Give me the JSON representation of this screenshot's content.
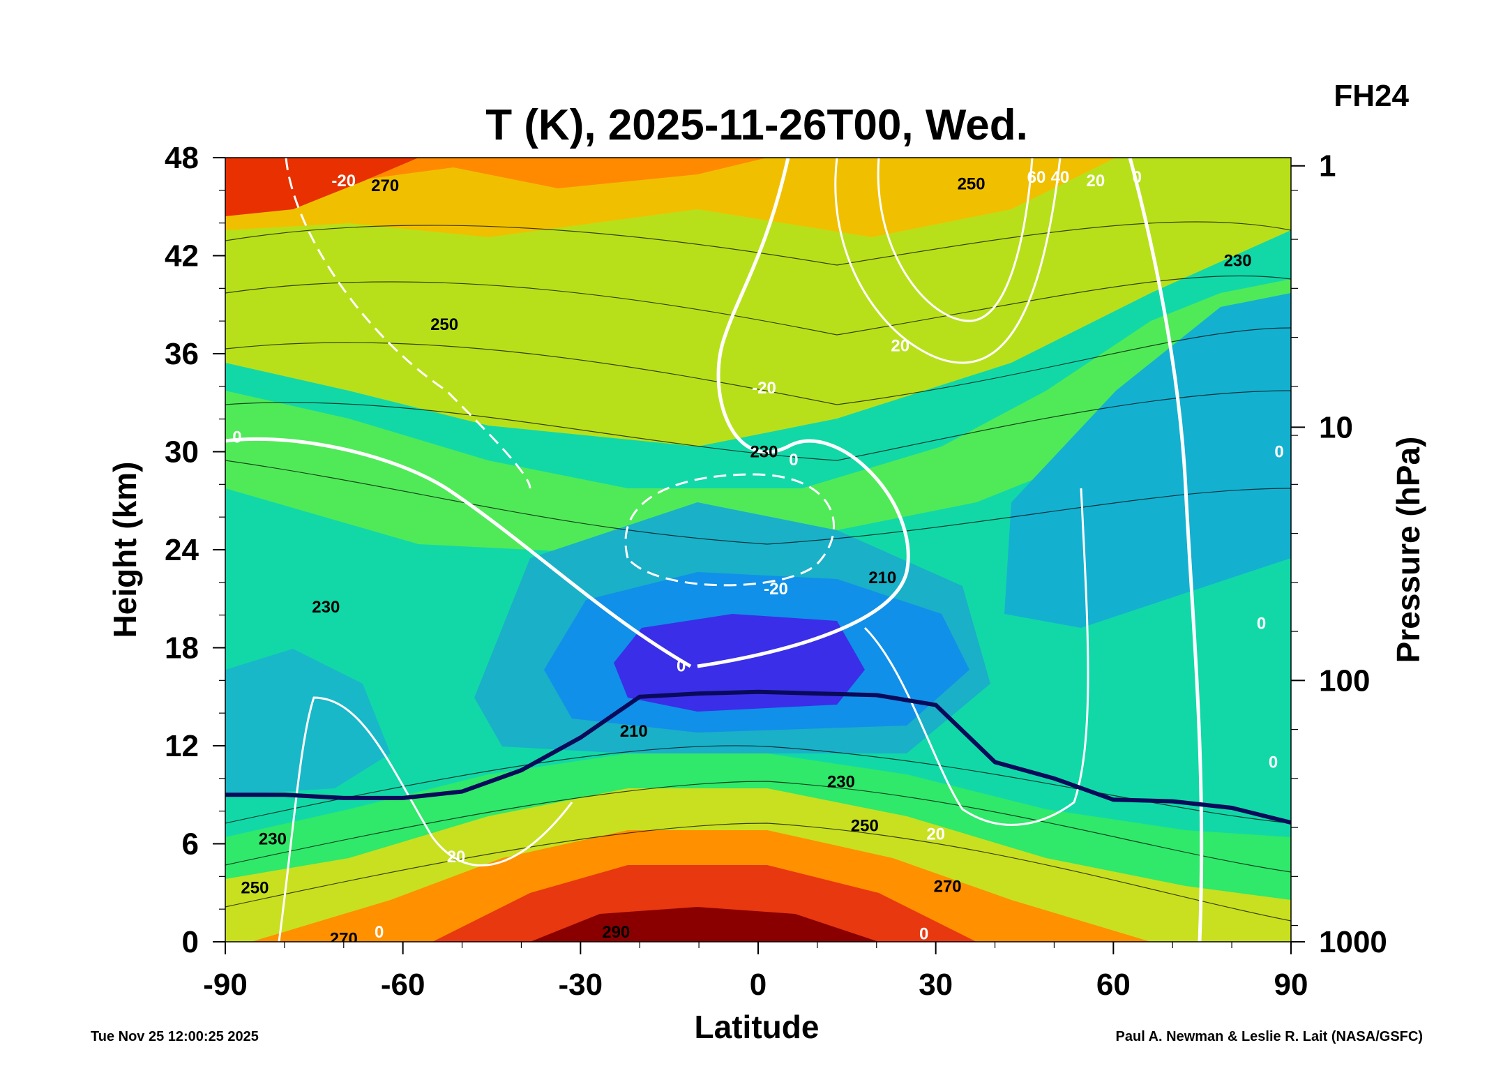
{
  "title": "T (K), 2025-11-26T00, Wed.",
  "forecast_hour": "FH24",
  "footer": {
    "timestamp": "Tue Nov 25 12:00:25 2025",
    "credit": "Paul A. Newman & Leslie R. Lait (NASA/GSFC)"
  },
  "colors": {
    "cold": "#3a2ee8",
    "cool": "#14b4d8",
    "mild": "#1ee894",
    "warm": "#f0a000",
    "hot": "#7a0000",
    "tropopause": "#0a0a5a",
    "wind_contour": "#ffffff"
  },
  "chart_data": {
    "type": "heatmap",
    "title": "T (K), 2025-11-26T00, Wed.",
    "xlabel": "Latitude",
    "ylabel": "Height (km)",
    "y2label": "Pressure (hPa)",
    "xlim": [
      -90,
      90
    ],
    "ylim": [
      0,
      48
    ],
    "xticks": [
      "-90",
      "-60",
      "-30",
      "0",
      "30",
      "60",
      "90"
    ],
    "yticks": [
      "0",
      "6",
      "12",
      "18",
      "24",
      "30",
      "36",
      "42",
      "48"
    ],
    "y2ticks": [
      "1000",
      "100",
      "10",
      "1"
    ],
    "y2_tick_heights_km": [
      0,
      16,
      31.5,
      47.5
    ],
    "grid": false,
    "temperature_contour_labels": [
      {
        "text": "270",
        "lat": -63,
        "z": 46.3
      },
      {
        "text": "250",
        "lat": -53,
        "z": 37.8
      },
      {
        "text": "230",
        "lat": 1,
        "z": 30.0
      },
      {
        "text": "230",
        "lat": -73,
        "z": 20.5
      },
      {
        "text": "210",
        "lat": 21,
        "z": 22.3
      },
      {
        "text": "210",
        "lat": -21,
        "z": 12.9
      },
      {
        "text": "230",
        "lat": 14,
        "z": 9.8
      },
      {
        "text": "250",
        "lat": 18,
        "z": 7.1
      },
      {
        "text": "270",
        "lat": 32,
        "z": 3.4
      },
      {
        "text": "230",
        "lat": -82,
        "z": 6.3
      },
      {
        "text": "250",
        "lat": -85,
        "z": 3.3
      },
      {
        "text": "270",
        "lat": -70,
        "z": 0.2
      },
      {
        "text": "290",
        "lat": -24,
        "z": 0.6
      },
      {
        "text": "250",
        "lat": 36,
        "z": 46.4
      },
      {
        "text": "230",
        "lat": 81,
        "z": 41.7
      }
    ],
    "wind_contour_labels": [
      {
        "text": "0",
        "lat": -88,
        "z": 30.9
      },
      {
        "text": "0",
        "lat": -13,
        "z": 16.9
      },
      {
        "text": "0",
        "lat": 6,
        "z": 29.5
      },
      {
        "text": "-20",
        "lat": 3,
        "z": 21.6
      },
      {
        "text": "-20",
        "lat": -70,
        "z": 46.6
      },
      {
        "text": "-20",
        "lat": 1,
        "z": 33.9
      },
      {
        "text": "20",
        "lat": 24,
        "z": 36.5
      },
      {
        "text": "20",
        "lat": 30,
        "z": 6.6
      },
      {
        "text": "20",
        "lat": -51,
        "z": 5.2
      },
      {
        "text": "20",
        "lat": 57,
        "z": 46.6
      },
      {
        "text": "40",
        "lat": 51,
        "z": 46.8
      },
      {
        "text": "60",
        "lat": 47,
        "z": 46.8
      },
      {
        "text": "0",
        "lat": 64,
        "z": 46.8
      },
      {
        "text": "0",
        "lat": -64,
        "z": 0.6
      },
      {
        "text": "0",
        "lat": 28,
        "z": 0.5
      },
      {
        "text": "0",
        "lat": 88,
        "z": 30.0
      },
      {
        "text": "0",
        "lat": 85,
        "z": 19.5
      },
      {
        "text": "0",
        "lat": 87,
        "z": 11.0
      }
    ],
    "tropopause": {
      "lat": [
        -90,
        -80,
        -70,
        -60,
        -50,
        -40,
        -30,
        -20,
        -10,
        0,
        10,
        20,
        30,
        40,
        50,
        60,
        70,
        80,
        90
      ],
      "z": [
        9.0,
        9.0,
        8.8,
        8.8,
        9.2,
        10.5,
        12.5,
        15.0,
        15.2,
        15.3,
        15.2,
        15.1,
        14.5,
        11.0,
        10.0,
        8.7,
        8.6,
        8.2,
        7.3
      ]
    }
  }
}
